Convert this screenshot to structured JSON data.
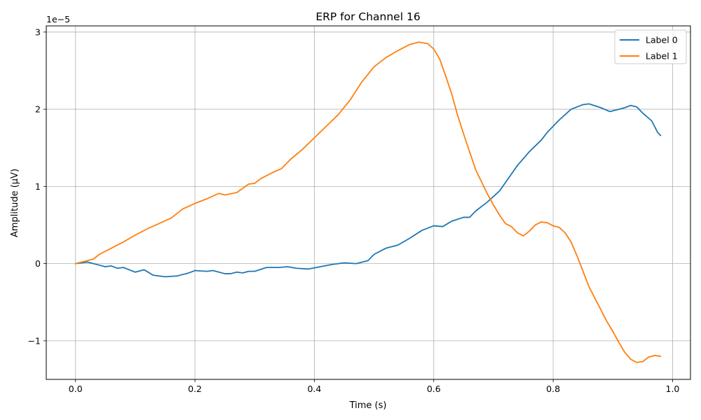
{
  "chart_data": {
    "type": "line",
    "title": "ERP for Channel 16",
    "xlabel": "Time (s)",
    "ylabel": "Amplitude (µV)",
    "y_offset_label": "1e−5",
    "xlim": [
      -0.049,
      1.03
    ],
    "ylim": [
      -1.5e-05,
      3.08e-05
    ],
    "x_ticks": [
      0.0,
      0.2,
      0.4,
      0.6,
      0.8,
      1.0
    ],
    "x_tick_labels": [
      "0.0",
      "0.2",
      "0.4",
      "0.6",
      "0.8",
      "1.0"
    ],
    "y_ticks": [
      -1e-05,
      0,
      1e-05,
      2e-05,
      3e-05
    ],
    "y_tick_labels": [
      "−1",
      "0",
      "1",
      "2",
      "3"
    ],
    "grid": true,
    "legend_position": "top-right",
    "series": [
      {
        "name": "Label 0",
        "color": "#1f77b4",
        "points": [
          [
            0.0,
            0.0
          ],
          [
            0.02,
            2e-07
          ],
          [
            0.04,
            -2e-07
          ],
          [
            0.05,
            -4e-07
          ],
          [
            0.06,
            -3e-07
          ],
          [
            0.07,
            -6e-07
          ],
          [
            0.08,
            -5e-07
          ],
          [
            0.09,
            -8e-07
          ],
          [
            0.1,
            -1.1e-06
          ],
          [
            0.115,
            -8e-07
          ],
          [
            0.13,
            -1.5e-06
          ],
          [
            0.15,
            -1.7e-06
          ],
          [
            0.17,
            -1.6e-06
          ],
          [
            0.19,
            -1.2e-06
          ],
          [
            0.2,
            -9e-07
          ],
          [
            0.22,
            -1e-06
          ],
          [
            0.23,
            -9e-07
          ],
          [
            0.25,
            -1.3e-06
          ],
          [
            0.26,
            -1.3e-06
          ],
          [
            0.27,
            -1.1e-06
          ],
          [
            0.28,
            -1.2e-06
          ],
          [
            0.29,
            -1e-06
          ],
          [
            0.3,
            -1e-06
          ],
          [
            0.32,
            -5e-07
          ],
          [
            0.34,
            -5e-07
          ],
          [
            0.355,
            -4e-07
          ],
          [
            0.37,
            -6e-07
          ],
          [
            0.39,
            -7e-07
          ],
          [
            0.41,
            -4e-07
          ],
          [
            0.43,
            -1e-07
          ],
          [
            0.45,
            1e-07
          ],
          [
            0.47,
            0.0
          ],
          [
            0.49,
            4e-07
          ],
          [
            0.5,
            1.2e-06
          ],
          [
            0.52,
            2e-06
          ],
          [
            0.54,
            2.4e-06
          ],
          [
            0.56,
            3.3e-06
          ],
          [
            0.58,
            4.3e-06
          ],
          [
            0.6,
            4.9e-06
          ],
          [
            0.615,
            4.8e-06
          ],
          [
            0.63,
            5.5e-06
          ],
          [
            0.65,
            6e-06
          ],
          [
            0.66,
            6e-06
          ],
          [
            0.67,
            6.8e-06
          ],
          [
            0.69,
            8e-06
          ],
          [
            0.71,
            9.4e-06
          ],
          [
            0.72,
            1.05e-05
          ],
          [
            0.74,
            1.27e-05
          ],
          [
            0.76,
            1.45e-05
          ],
          [
            0.78,
            1.6e-05
          ],
          [
            0.79,
            1.7e-05
          ],
          [
            0.81,
            1.86e-05
          ],
          [
            0.83,
            2e-05
          ],
          [
            0.85,
            2.06e-05
          ],
          [
            0.86,
            2.07e-05
          ],
          [
            0.88,
            2.02e-05
          ],
          [
            0.895,
            1.97e-05
          ],
          [
            0.91,
            2e-05
          ],
          [
            0.92,
            2.02e-05
          ],
          [
            0.93,
            2.05e-05
          ],
          [
            0.94,
            2.03e-05
          ],
          [
            0.95,
            1.95e-05
          ],
          [
            0.965,
            1.85e-05
          ],
          [
            0.975,
            1.7e-05
          ],
          [
            0.98,
            1.66e-05
          ]
        ]
      },
      {
        "name": "Label 1",
        "color": "#ff7f0e",
        "points": [
          [
            0.0,
            0.0
          ],
          [
            0.02,
            4e-07
          ],
          [
            0.03,
            6e-07
          ],
          [
            0.04,
            1.2e-06
          ],
          [
            0.06,
            2e-06
          ],
          [
            0.08,
            2.8e-06
          ],
          [
            0.1,
            3.7e-06
          ],
          [
            0.12,
            4.5e-06
          ],
          [
            0.14,
            5.2e-06
          ],
          [
            0.16,
            5.9e-06
          ],
          [
            0.18,
            7.1e-06
          ],
          [
            0.2,
            7.8e-06
          ],
          [
            0.22,
            8.4e-06
          ],
          [
            0.24,
            9.1e-06
          ],
          [
            0.25,
            8.9e-06
          ],
          [
            0.27,
            9.2e-06
          ],
          [
            0.29,
            1.03e-05
          ],
          [
            0.3,
            1.04e-05
          ],
          [
            0.31,
            1.1e-05
          ],
          [
            0.33,
            1.18e-05
          ],
          [
            0.345,
            1.23e-05
          ],
          [
            0.36,
            1.35e-05
          ],
          [
            0.38,
            1.48e-05
          ],
          [
            0.4,
            1.63e-05
          ],
          [
            0.42,
            1.78e-05
          ],
          [
            0.44,
            1.93e-05
          ],
          [
            0.46,
            2.12e-05
          ],
          [
            0.48,
            2.36e-05
          ],
          [
            0.5,
            2.55e-05
          ],
          [
            0.52,
            2.67e-05
          ],
          [
            0.54,
            2.76e-05
          ],
          [
            0.56,
            2.84e-05
          ],
          [
            0.575,
            2.87e-05
          ],
          [
            0.59,
            2.85e-05
          ],
          [
            0.6,
            2.78e-05
          ],
          [
            0.61,
            2.65e-05
          ],
          [
            0.62,
            2.43e-05
          ],
          [
            0.63,
            2.2e-05
          ],
          [
            0.64,
            1.92e-05
          ],
          [
            0.65,
            1.68e-05
          ],
          [
            0.66,
            1.45e-05
          ],
          [
            0.67,
            1.22e-05
          ],
          [
            0.68,
            1.06e-05
          ],
          [
            0.69,
            9e-06
          ],
          [
            0.7,
            7.6e-06
          ],
          [
            0.71,
            6.3e-06
          ],
          [
            0.72,
            5.2e-06
          ],
          [
            0.73,
            4.8e-06
          ],
          [
            0.74,
            4e-06
          ],
          [
            0.75,
            3.6e-06
          ],
          [
            0.76,
            4.2e-06
          ],
          [
            0.77,
            5e-06
          ],
          [
            0.78,
            5.4e-06
          ],
          [
            0.79,
            5.3e-06
          ],
          [
            0.8,
            4.9e-06
          ],
          [
            0.81,
            4.7e-06
          ],
          [
            0.82,
            4e-06
          ],
          [
            0.83,
            2.8e-06
          ],
          [
            0.84,
            1e-06
          ],
          [
            0.85,
            -1e-06
          ],
          [
            0.86,
            -3e-06
          ],
          [
            0.87,
            -4.5e-06
          ],
          [
            0.88,
            -6e-06
          ],
          [
            0.89,
            -7.5e-06
          ],
          [
            0.9,
            -8.8e-06
          ],
          [
            0.91,
            -1.02e-05
          ],
          [
            0.92,
            -1.15e-05
          ],
          [
            0.93,
            -1.24e-05
          ],
          [
            0.94,
            -1.28e-05
          ],
          [
            0.95,
            -1.27e-05
          ],
          [
            0.96,
            -1.21e-05
          ],
          [
            0.97,
            -1.19e-05
          ],
          [
            0.98,
            -1.2e-05
          ]
        ]
      }
    ]
  }
}
